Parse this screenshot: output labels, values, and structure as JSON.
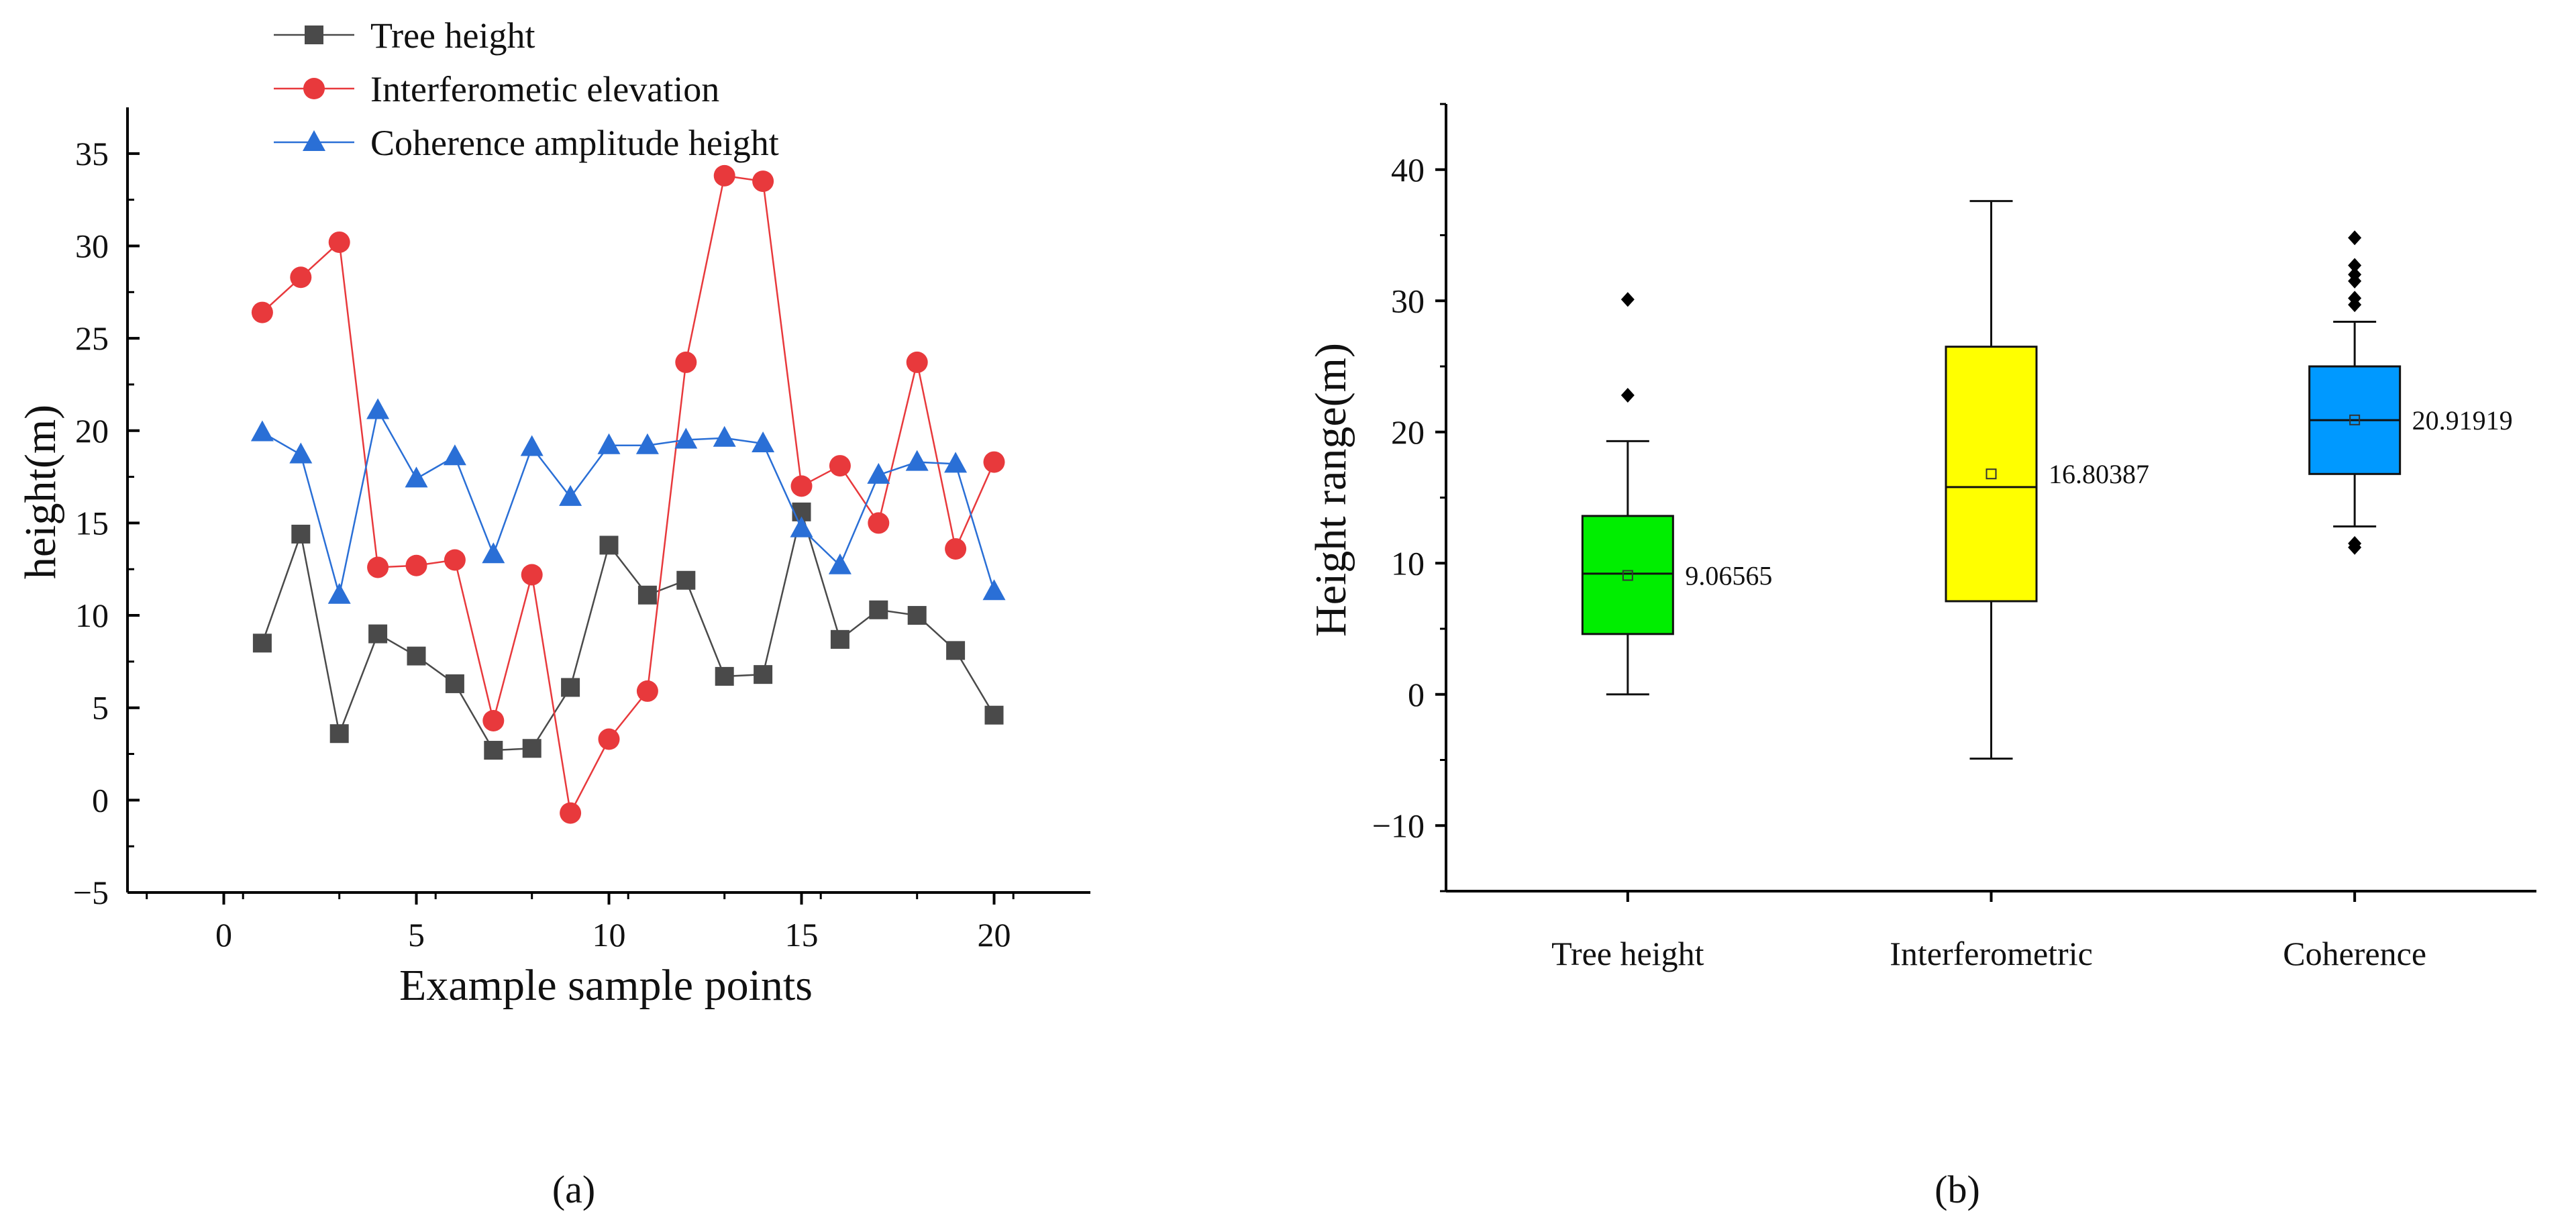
{
  "chart_data": [
    {
      "type": "line",
      "panel_label": "(a)",
      "xlabel": "Example sample points",
      "ylabel": "height(m)",
      "xlim": [
        -2.5,
        22.5
      ],
      "ylim": [
        -5,
        37.5
      ],
      "xticks": [
        0,
        5,
        10,
        15,
        20
      ],
      "yticks": [
        -5,
        0,
        5,
        10,
        15,
        20,
        25,
        30,
        35
      ],
      "grid": false,
      "legend_position": "top-left",
      "x": [
        1,
        2,
        3,
        4,
        5,
        6,
        7,
        8,
        9,
        10,
        11,
        12,
        13,
        14,
        15,
        16,
        17,
        18,
        19,
        20
      ],
      "series": [
        {
          "name": "Tree height",
          "color": "#4a4a4a",
          "marker": "square",
          "values": [
            8.5,
            14.4,
            3.6,
            9.0,
            7.8,
            6.3,
            2.7,
            2.8,
            6.1,
            13.8,
            11.1,
            11.9,
            6.7,
            6.8,
            15.6,
            8.7,
            10.3,
            10.0,
            8.1,
            4.6
          ]
        },
        {
          "name": "Interferometic elevation",
          "color": "#e8393c",
          "marker": "circle",
          "values": [
            26.4,
            28.3,
            30.2,
            12.6,
            12.7,
            13.0,
            4.3,
            12.2,
            -0.7,
            3.3,
            5.9,
            23.7,
            33.8,
            33.5,
            17.0,
            18.1,
            15.0,
            23.7,
            13.6,
            18.3
          ]
        },
        {
          "name": "Coherence amplitude height",
          "color": "#2a6fd6",
          "marker": "triangle",
          "values": [
            19.9,
            18.7,
            11.1,
            21.1,
            17.4,
            18.6,
            13.3,
            19.1,
            16.4,
            19.2,
            19.2,
            19.5,
            19.6,
            19.3,
            14.7,
            12.7,
            17.6,
            18.3,
            18.2,
            11.3
          ]
        }
      ]
    },
    {
      "type": "box",
      "panel_label": "(b)",
      "ylabel": "Height range(m)",
      "xlabel": "",
      "ylim": [
        -15,
        45
      ],
      "yticks": [
        -10,
        0,
        10,
        20,
        30,
        40
      ],
      "grid": false,
      "categories": [
        "Tree height",
        "Interferometric",
        "Coherence"
      ],
      "boxes": [
        {
          "name": "Tree height",
          "color": "#00ee00",
          "whisker_low": 0.0,
          "q1": 4.6,
          "median": 9.2,
          "q3": 13.6,
          "whisker_high": 19.3,
          "mean": 9.06565,
          "mean_label": "9.06565",
          "outliers": [
            22.8,
            30.1
          ]
        },
        {
          "name": "Interferometric",
          "color": "#ffff00",
          "whisker_low": -4.9,
          "q1": 7.1,
          "median": 15.8,
          "q3": 26.5,
          "whisker_high": 37.6,
          "mean": 16.80387,
          "mean_label": "16.80387",
          "outliers": []
        },
        {
          "name": "Coherence",
          "color": "#0099ff",
          "whisker_low": 12.8,
          "q1": 16.8,
          "median": 20.9,
          "q3": 25.0,
          "whisker_high": 28.4,
          "mean": 20.91919,
          "mean_label": "20.91919",
          "outliers": [
            11.2,
            11.5,
            29.7,
            30.2,
            31.5,
            32.0,
            32.7,
            34.8
          ]
        }
      ]
    }
  ]
}
